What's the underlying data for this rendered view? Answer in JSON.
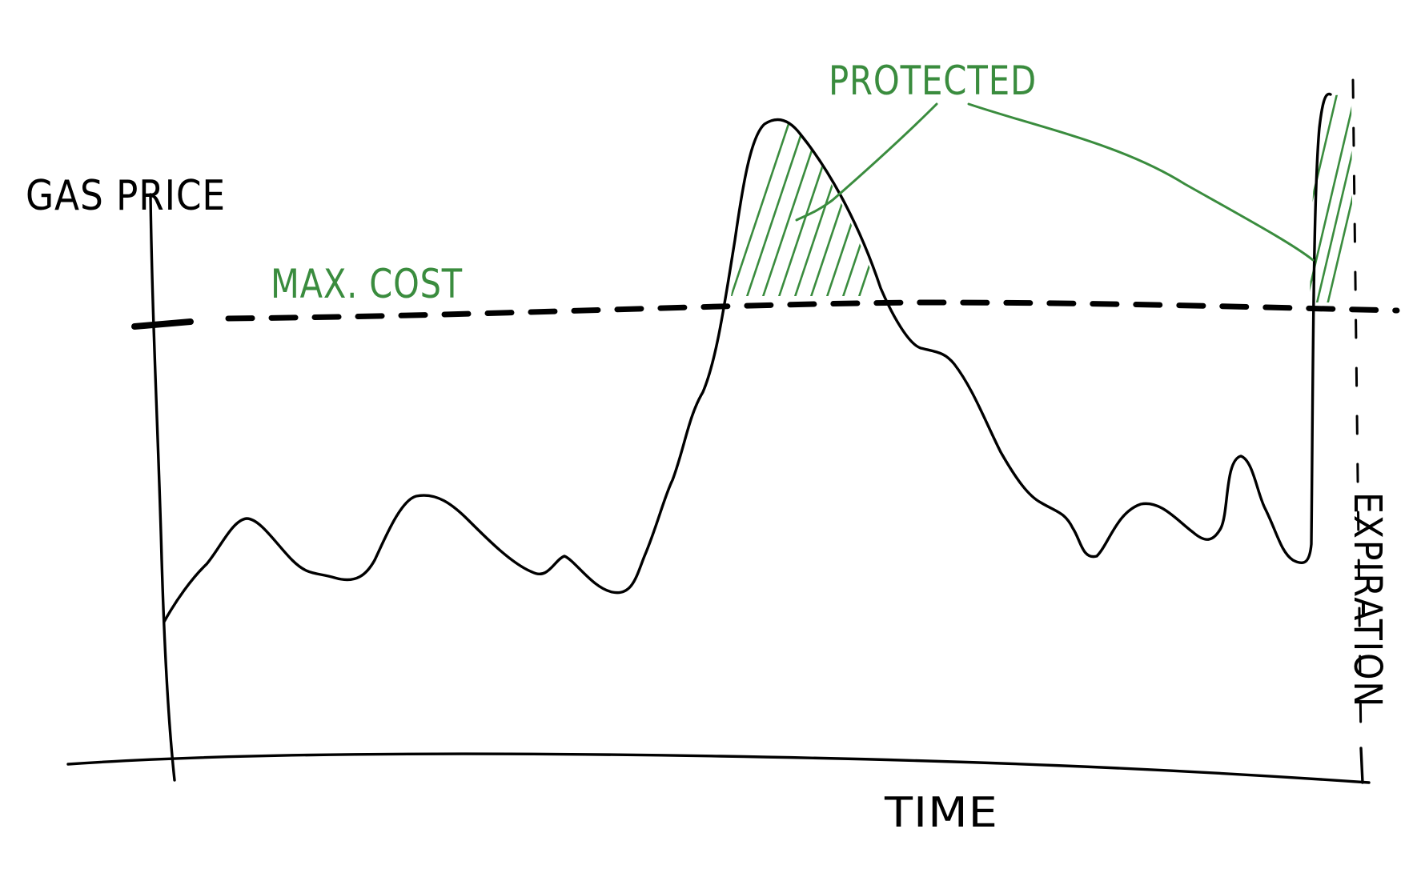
{
  "labels": {
    "y_axis": "GAS PRICE",
    "x_axis": "TIME",
    "max_cost": "MAX. COST",
    "protected": "PROTECTED",
    "expiration": "EXPIRATION"
  },
  "colors": {
    "ink": "#000000",
    "annotation": "#3a8c3e",
    "background": "#ffffff"
  }
}
